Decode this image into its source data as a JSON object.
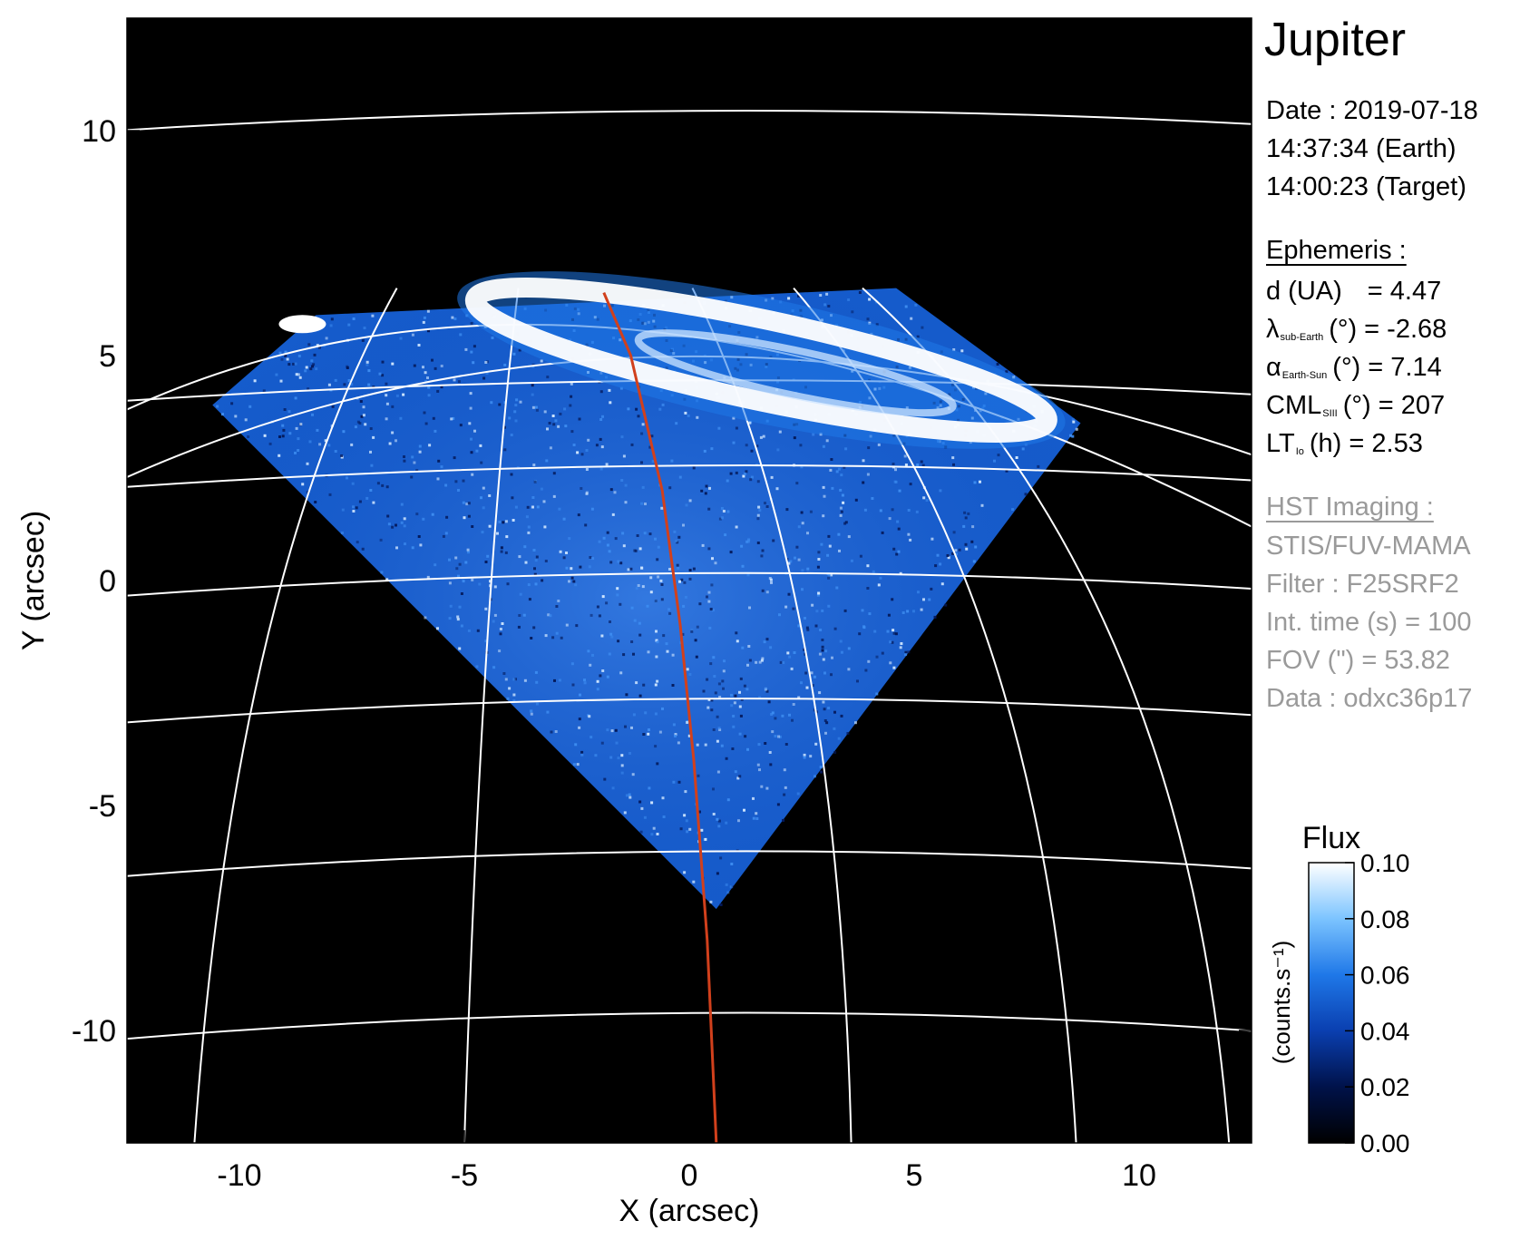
{
  "panel": {
    "title": "Jupiter",
    "date_line": "Date : 2019-07-18",
    "time_earth": "14:37:34 (Earth)",
    "time_target": "14:00:23 (Target)",
    "ephemeris_heading": "Ephemeris :",
    "ephemeris": {
      "d_label": "d (UA)",
      "d_value": "= 4.47",
      "lat_sym": "λ",
      "lat_sub": "sub-Earth",
      "lat_tail": "(°) = -2.68",
      "phase_sym": "α",
      "phase_sub": "Earth-Sun",
      "phase_tail": "(°) = 7.14",
      "cml_sym": "CML",
      "cml_sub": "SIII",
      "cml_tail": "(°) = 207",
      "lt_sym": "LT",
      "lt_sub": "Io",
      "lt_tail": "(h) = 2.53"
    },
    "imaging_heading": "HST Imaging :",
    "imaging": {
      "instrument": "STIS/FUV-MAMA",
      "filter": "Filter : F25SRF2",
      "int_time": "Int. time (s) = 100",
      "fov": "FOV (\") = 53.82",
      "data": "Data : odxc36p17"
    }
  },
  "colorbar": {
    "title": "Flux",
    "label": "(counts.s⁻¹)",
    "min": 0.0,
    "max": 0.1,
    "ticks": [
      "0.00",
      "0.02",
      "0.04",
      "0.06",
      "0.08",
      "0.10"
    ],
    "colors": [
      "#000000",
      "#00124a",
      "#0a3fb0",
      "#1f78e8",
      "#7cc4ff",
      "#ffffff"
    ]
  },
  "chart_data": {
    "type": "heatmap",
    "xlabel": "X (arcsec)",
    "ylabel": "Y (arcsec)",
    "xlim": [
      -12.5,
      12.5
    ],
    "ylim": [
      -12.5,
      12.5
    ],
    "xticks": [
      -10,
      -5,
      0,
      5,
      10
    ],
    "yticks": [
      -10,
      -5,
      0,
      5,
      10
    ],
    "xtick_labels": [
      "-10",
      "-5",
      "0",
      "5",
      "10"
    ],
    "ytick_labels": [
      "-10",
      "-5",
      "0",
      "5",
      "10"
    ],
    "observed_region": {
      "vertices": [
        [
          -10.6,
          3.9
        ],
        [
          -8.3,
          5.9
        ],
        [
          4.6,
          6.5
        ],
        [
          8.7,
          3.5
        ],
        [
          0.6,
          -7.3
        ]
      ],
      "mean_flux": 0.05
    },
    "auroral_oval": {
      "center": [
        1.6,
        4.9
      ],
      "semi_major": 6.5,
      "semi_minor": 0.9,
      "angle_deg": -12,
      "flux": 0.1
    },
    "io_spot": {
      "x": -8.6,
      "y": 5.7,
      "flux": 0.1
    },
    "latitude_lines_y": [
      10.3,
      4.3,
      2.4,
      0.0,
      -2.8,
      -6.2,
      -9.8
    ],
    "longitude_lines_x": [
      -11.0,
      -5.0,
      3.6,
      8.6,
      12.0
    ],
    "cml_meridian": {
      "x": [
        -1.9,
        -1.3,
        -0.6,
        -0.2,
        0.1,
        0.4,
        0.6
      ],
      "y": [
        6.4,
        5.0,
        2.0,
        -1.0,
        -4.0,
        -8.0,
        -12.5
      ]
    },
    "colors": {
      "grid": "#ffffff",
      "meridian": "#d1401c",
      "background": "#000000"
    }
  }
}
